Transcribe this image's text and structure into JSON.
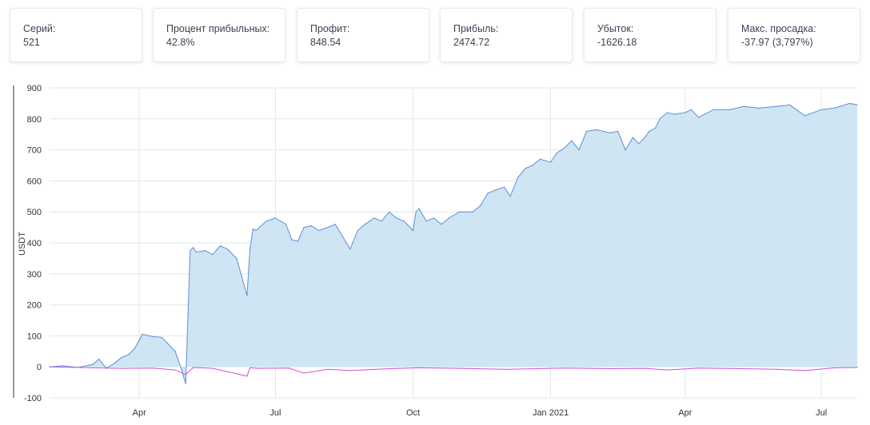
{
  "stats": [
    {
      "label": "Серий:",
      "value": "521"
    },
    {
      "label": "Процент прибыльных:",
      "value": "42.8%"
    },
    {
      "label": "Профит:",
      "value": "848.54"
    },
    {
      "label": "Прибыль:",
      "value": "2474.72"
    },
    {
      "label": "Убыток:",
      "value": "-1626.18"
    },
    {
      "label": "Макс. просадка:",
      "value": "-37.97 (3,797%)"
    }
  ],
  "colors": {
    "equity_line": "#5b8fd6",
    "equity_fill": "#cfe5f3",
    "trade_line": "#d04fd8",
    "grid": "#e3e6ea"
  },
  "chart_data": {
    "type": "area",
    "ylabel": "USDT",
    "ylim": [
      -100,
      900
    ],
    "yticks": [
      "900",
      "800",
      "700",
      "600",
      "500",
      "400",
      "300",
      "200",
      "100",
      "0",
      "-100"
    ],
    "xticks": [
      "Apr",
      "Jul",
      "Oct",
      "Jan 2021",
      "Apr",
      "Jul"
    ],
    "grid": true,
    "series": [
      {
        "kind": "equity",
        "x": [
          "2020-02-01",
          "2020-02-10",
          "2020-02-20",
          "2020-03-01",
          "2020-03-05",
          "2020-03-10",
          "2020-03-15",
          "2020-03-20",
          "2020-03-25",
          "2020-03-29",
          "2020-04-03",
          "2020-04-10",
          "2020-04-16",
          "2020-04-20",
          "2020-04-25",
          "2020-04-29",
          "2020-05-02",
          "2020-05-05",
          "2020-05-07",
          "2020-05-09",
          "2020-05-15",
          "2020-05-20",
          "2020-05-25",
          "2020-05-30",
          "2020-06-05",
          "2020-06-08",
          "2020-06-12",
          "2020-06-14",
          "2020-06-16",
          "2020-06-18",
          "2020-06-25",
          "2020-07-01",
          "2020-07-08",
          "2020-07-12",
          "2020-07-16",
          "2020-07-20",
          "2020-07-25",
          "2020-07-30",
          "2020-08-05",
          "2020-08-10",
          "2020-08-15",
          "2020-08-20",
          "2020-08-25",
          "2020-08-30",
          "2020-09-05",
          "2020-09-10",
          "2020-09-15",
          "2020-09-20",
          "2020-09-25",
          "2020-10-01",
          "2020-10-03",
          "2020-10-05",
          "2020-10-10",
          "2020-10-15",
          "2020-10-20",
          "2020-10-25",
          "2020-11-01",
          "2020-11-10",
          "2020-11-15",
          "2020-11-20",
          "2020-11-25",
          "2020-12-01",
          "2020-12-05",
          "2020-12-10",
          "2020-12-15",
          "2020-12-20",
          "2020-12-25",
          "2021-01-01",
          "2021-01-05",
          "2021-01-10",
          "2021-01-15",
          "2021-01-20",
          "2021-01-25",
          "2021-02-01",
          "2021-02-05",
          "2021-02-10",
          "2021-02-15",
          "2021-02-20",
          "2021-02-25",
          "2021-03-01",
          "2021-03-05",
          "2021-03-08",
          "2021-03-12",
          "2021-03-15",
          "2021-03-20",
          "2021-03-25",
          "2021-04-01",
          "2021-04-05",
          "2021-04-10",
          "2021-04-20",
          "2021-05-01",
          "2021-05-10",
          "2021-05-20",
          "2021-06-01",
          "2021-06-10",
          "2021-06-20",
          "2021-07-01",
          "2021-07-10",
          "2021-07-20",
          "2021-07-25"
        ],
        "y": [
          0,
          3,
          -2,
          8,
          25,
          -5,
          10,
          30,
          40,
          60,
          105,
          98,
          95,
          75,
          50,
          -5,
          -55,
          375,
          385,
          370,
          375,
          362,
          390,
          380,
          350,
          300,
          230,
          380,
          445,
          440,
          470,
          480,
          460,
          410,
          405,
          450,
          455,
          440,
          450,
          460,
          420,
          380,
          440,
          460,
          480,
          470,
          500,
          480,
          470,
          440,
          500,
          510,
          470,
          480,
          460,
          480,
          500,
          500,
          520,
          560,
          570,
          580,
          550,
          610,
          640,
          650,
          670,
          660,
          690,
          705,
          730,
          700,
          760,
          765,
          760,
          755,
          760,
          700,
          740,
          720,
          740,
          760,
          770,
          800,
          820,
          815,
          820,
          830,
          805,
          830,
          830,
          840,
          835,
          840,
          845,
          810,
          830,
          835,
          850,
          845
        ]
      },
      {
        "kind": "trade_pnl",
        "x": [
          "2020-02-01",
          "2020-03-01",
          "2020-03-20",
          "2020-04-10",
          "2020-04-25",
          "2020-05-02",
          "2020-05-07",
          "2020-05-20",
          "2020-06-12",
          "2020-06-14",
          "2020-06-20",
          "2020-07-10",
          "2020-07-20",
          "2020-08-05",
          "2020-08-20",
          "2020-09-15",
          "2020-10-05",
          "2020-11-01",
          "2020-12-01",
          "2021-01-10",
          "2021-02-10",
          "2021-03-05",
          "2021-03-20",
          "2021-04-10",
          "2021-05-10",
          "2021-06-01",
          "2021-06-20",
          "2021-07-10",
          "2021-07-25"
        ],
        "y": [
          0,
          -3,
          -5,
          -4,
          -10,
          -25,
          -2,
          -5,
          -30,
          -3,
          -5,
          -4,
          -20,
          -8,
          -12,
          -6,
          -3,
          -5,
          -8,
          -4,
          -6,
          -5,
          -10,
          -4,
          -6,
          -8,
          -12,
          -3,
          -2
        ]
      }
    ]
  }
}
